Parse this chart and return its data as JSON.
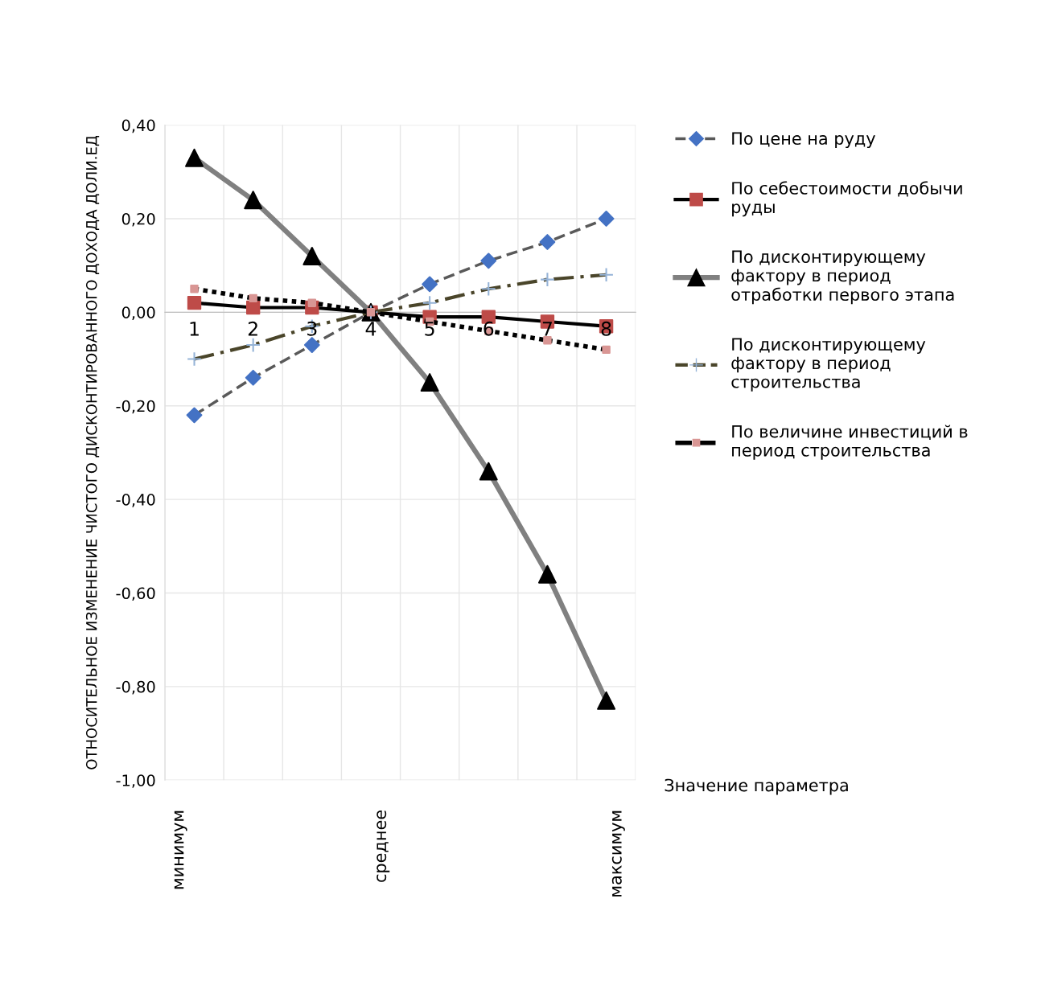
{
  "chart_data": {
    "type": "line",
    "ylabel": "ОТНОСИТЕЛЬНОЕ ИЗМЕНЕНИЕ ЧИСТОГО ДИСКОНТИРОВАННОГО ДОХОДА ДОЛИ.ЕД",
    "xlabel": "Значение параметра",
    "categories": [
      "1",
      "2",
      "3",
      "4",
      "5",
      "6",
      "7",
      "8"
    ],
    "series": [
      {
        "name": "По цене на руду",
        "color": "#595959",
        "colors": [
          "#4472c4",
          "#4472c4",
          "#4472c4",
          "#4472c4",
          "#4472c4",
          "#4472c4",
          "#4472c4",
          "#4472c4"
        ],
        "marker": "diamond",
        "line_style": "dashed",
        "values": [
          -0.22,
          -0.14,
          -0.07,
          0,
          0.06,
          0.11,
          0.15,
          0.2
        ]
      },
      {
        "name": "По себестоимости добычи руды",
        "color": "#000000",
        "colors": [
          "#be4b48",
          "#be4b48",
          "#be4b48",
          "#be4b48",
          "#be4b48",
          "#be4b48",
          "#be4b48",
          "#be4b48"
        ],
        "marker": "square",
        "line_style": "solid",
        "values": [
          0.02,
          0.01,
          0.01,
          0,
          -0.01,
          -0.01,
          -0.02,
          -0.03
        ]
      },
      {
        "name": "По дисконтирующему фактору в период отработки первого этапа",
        "color": "#808080",
        "colors": [
          "#000000",
          "#000000",
          "#000000",
          "#000000",
          "#000000",
          "#000000",
          "#000000",
          "#000000"
        ],
        "marker": "triangle",
        "line_style": "solid",
        "values": [
          0.33,
          0.24,
          0.12,
          0,
          -0.15,
          -0.34,
          -0.56,
          -0.83
        ]
      },
      {
        "name": "По дисконтирующему фактору в период строительства",
        "color": "#4a452a",
        "colors": [
          "#95b3d7",
          "#95b3d7",
          "#95b3d7",
          "#95b3d7",
          "#95b3d7",
          "#95b3d7",
          "#95b3d7",
          "#95b3d7"
        ],
        "marker": "cross",
        "line_style": "dashdot",
        "values": [
          -0.1,
          -0.07,
          -0.03,
          0,
          0.02,
          0.05,
          0.07,
          0.08
        ]
      },
      {
        "name": "По величине инвестиций в период строительства",
        "color": "#000000",
        "colors": [
          "#d99694",
          "#d99694",
          "#d99694",
          "#d99694",
          "#d99694",
          "#d99694",
          "#d99694",
          "#d99694"
        ],
        "marker": "square",
        "line_style": "dotted",
        "values": [
          0.05,
          0.03,
          0.02,
          0,
          -0.02,
          -0.04,
          -0.06,
          -0.08
        ]
      }
    ],
    "ylim": [
      -1.0,
      0.4
    ],
    "yticks": [
      {
        "value": 0.4,
        "label": "0,40"
      },
      {
        "value": 0.2,
        "label": "0,20"
      },
      {
        "value": 0,
        "label": "0,00"
      },
      {
        "value": -0.2,
        "label": "-0,20"
      },
      {
        "value": -0.4,
        "label": "-0,40"
      },
      {
        "value": -0.6,
        "label": "-0,60"
      },
      {
        "value": -0.8,
        "label": "-0,80"
      },
      {
        "value": -1.0,
        "label": "-1,00"
      }
    ],
    "grid": true,
    "legend": "right",
    "annotations": [
      "минимум",
      "среднее",
      "максимум"
    ]
  }
}
